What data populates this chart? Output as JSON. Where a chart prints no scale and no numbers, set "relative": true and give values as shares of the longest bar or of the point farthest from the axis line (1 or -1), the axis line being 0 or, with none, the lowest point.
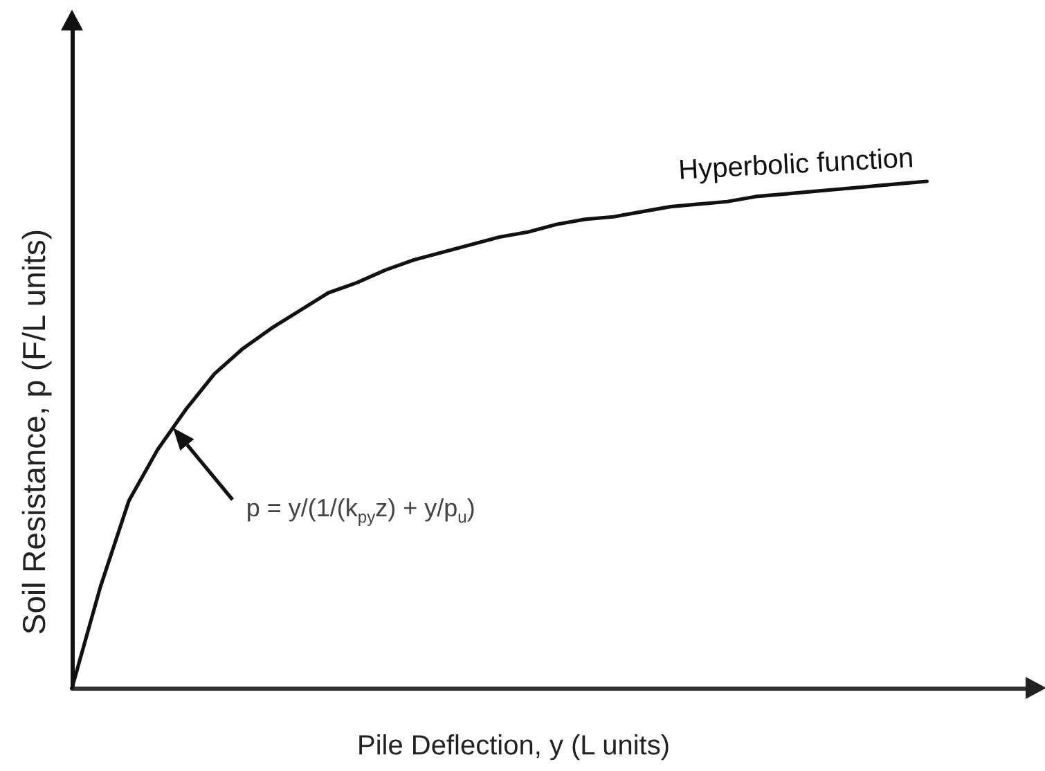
{
  "chart_data": {
    "type": "line",
    "relative": true,
    "xlabel": "Pile Deflection, y (L units)",
    "ylabel": "Soil Resistance, p (F/L units)",
    "categories": [
      null,
      null,
      null,
      null,
      null,
      null,
      null,
      null,
      null,
      null,
      null,
      null,
      null,
      null,
      null,
      null,
      null,
      null,
      null,
      null,
      null,
      null,
      null,
      null,
      null,
      null,
      null,
      null,
      null,
      null,
      null
    ],
    "series": [
      {
        "name": "Hyperbolic function",
        "color": "#111111",
        "values": [
          0,
          0.2,
          0.37,
          0.47,
          0.55,
          0.62,
          0.67,
          0.71,
          0.745,
          0.78,
          0.8,
          0.825,
          0.845,
          0.86,
          0.875,
          0.89,
          0.9,
          0.915,
          0.925,
          0.93,
          0.94,
          0.95,
          0.955,
          0.96,
          0.97,
          0.975,
          0.98,
          0.985,
          0.99,
          0.995,
          1
        ]
      }
    ],
    "annotations": [
      "p = y/(1/(k$_{py}$z) + y/p$_{u}$)"
    ]
  }
}
